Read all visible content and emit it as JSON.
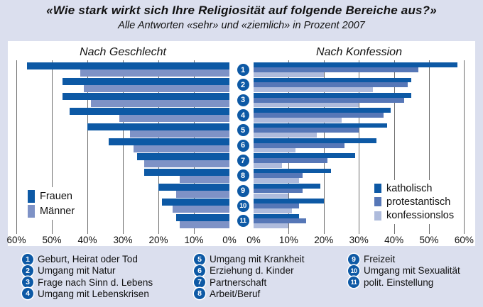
{
  "title": "«Wie stark wirkt sich Ihre Religiosität auf folgende Bereiche aus?»",
  "subtitle": "Alle Antworten «sehr» und «ziemlich» in Prozent 2007",
  "colors": {
    "background": "#dbdfee",
    "panel": "#ffffff",
    "gridline": "#6e6e6e",
    "badge": "#0d59a5",
    "frauen": "#0d59a5",
    "maenner": "#7e92c6",
    "katholisch": "#0d59a5",
    "protestantisch": "#5677b7",
    "konfessionslos": "#aebbdc"
  },
  "chart_data": {
    "type": "bar",
    "orientation": "horizontal-bidirectional",
    "axis": {
      "min": 0,
      "max": 60,
      "tick_step": 10,
      "unit": "%",
      "grid": true
    },
    "left_ticks": [
      "60%",
      "50%",
      "40%",
      "30%",
      "20%",
      "10%",
      "0%"
    ],
    "right_ticks": [
      "0%",
      "10%",
      "20%",
      "30%",
      "40%",
      "50%",
      "60%"
    ],
    "categories": [
      {
        "num": "1",
        "label": "Geburt, Heirat oder Tod"
      },
      {
        "num": "2",
        "label": "Umgang mit Natur"
      },
      {
        "num": "3",
        "label": "Frage nach Sinn d. Lebens"
      },
      {
        "num": "4",
        "label": "Umgang mit Lebenskrisen"
      },
      {
        "num": "5",
        "label": "Umgang mit Krankheit"
      },
      {
        "num": "6",
        "label": "Erziehung d. Kinder"
      },
      {
        "num": "7",
        "label": "Partnerschaft"
      },
      {
        "num": "8",
        "label": "Arbeit/Beruf"
      },
      {
        "num": "9",
        "label": "Freizeit"
      },
      {
        "num": "10",
        "label": "Umgang mit Sexualität"
      },
      {
        "num": "11",
        "label": "polit. Einstellung"
      }
    ],
    "panels": [
      {
        "title": "Nach Geschlecht",
        "side": "left",
        "series": [
          {
            "name": "Frauen",
            "color": "#0d59a5",
            "values": [
              57,
              47,
              47,
              45,
              40,
              34,
              26,
              24,
              20,
              19,
              15
            ]
          },
          {
            "name": "Männer",
            "color": "#7e92c6",
            "values": [
              42,
              41,
              39,
              31,
              28,
              27,
              24,
              14,
              15,
              16,
              14
            ]
          }
        ]
      },
      {
        "title": "Nach Konfession",
        "side": "right",
        "series": [
          {
            "name": "katholisch",
            "color": "#0d59a5",
            "values": [
              58,
              45,
              45,
              39,
              38,
              35,
              29,
              22,
              19,
              20,
              13
            ]
          },
          {
            "name": "protestantisch",
            "color": "#5677b7",
            "values": [
              47,
              44,
              43,
              37,
              30,
              26,
              21,
              14,
              14,
              13,
              15
            ]
          },
          {
            "name": "konfessionslos",
            "color": "#aebbdc",
            "values": [
              20,
              34,
              30,
              25,
              18,
              12,
              8,
              13,
              10,
              11,
              10
            ]
          }
        ]
      }
    ]
  }
}
